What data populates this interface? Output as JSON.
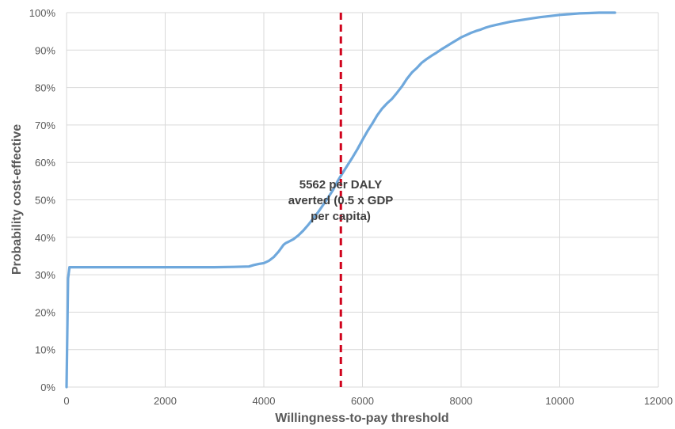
{
  "chart_data": {
    "type": "line",
    "title": "",
    "xlabel": "Willingness-to-pay threshold",
    "ylabel": "Probability cost-effective",
    "xlim": [
      0,
      12000
    ],
    "ylim": [
      0,
      1
    ],
    "x_ticks": [
      0,
      2000,
      4000,
      6000,
      8000,
      10000,
      12000
    ],
    "x_tick_labels": [
      "0",
      "2000",
      "4000",
      "6000",
      "8000",
      "10000",
      "12000"
    ],
    "y_ticks": [
      0,
      0.1,
      0.2,
      0.3,
      0.4,
      0.5,
      0.6,
      0.7,
      0.8,
      0.9,
      1.0
    ],
    "y_tick_labels": [
      "0%",
      "10%",
      "20%",
      "30%",
      "40%",
      "50%",
      "60%",
      "70%",
      "80%",
      "90%",
      "100%"
    ],
    "grid": true,
    "legend": "none",
    "colors": {
      "series": "#6fa8dc",
      "threshold": "#d0021b",
      "grid": "#d9d9d9",
      "text": "#595959"
    },
    "series": [
      {
        "x": [
          0,
          30,
          60,
          100,
          500,
          1000,
          2000,
          3000,
          3400,
          3700,
          3800,
          3900,
          4000,
          4100,
          4200,
          4300,
          4400,
          4450,
          4500,
          4600,
          4700,
          4800,
          4900,
          5000,
          5100,
          5200,
          5300,
          5400,
          5500,
          5600,
          5700,
          5800,
          5900,
          6000,
          6100,
          6200,
          6300,
          6400,
          6500,
          6600,
          6700,
          6800,
          6900,
          7000,
          7100,
          7200,
          7300,
          7400,
          7500,
          7600,
          7700,
          7800,
          7900,
          8000,
          8100,
          8200,
          8300,
          8400,
          8500,
          8600,
          8700,
          8800,
          8900,
          9000,
          9200,
          9400,
          9600,
          9800,
          10000,
          10200,
          10400,
          10600,
          10800,
          11000,
          11120
        ],
        "y": [
          0.0,
          0.29,
          0.32,
          0.32,
          0.32,
          0.32,
          0.32,
          0.32,
          0.321,
          0.322,
          0.326,
          0.329,
          0.331,
          0.337,
          0.347,
          0.362,
          0.38,
          0.385,
          0.388,
          0.395,
          0.405,
          0.418,
          0.433,
          0.45,
          0.467,
          0.486,
          0.505,
          0.526,
          0.551,
          0.572,
          0.593,
          0.614,
          0.636,
          0.66,
          0.683,
          0.704,
          0.726,
          0.744,
          0.758,
          0.77,
          0.786,
          0.803,
          0.823,
          0.84,
          0.852,
          0.866,
          0.876,
          0.885,
          0.893,
          0.902,
          0.91,
          0.918,
          0.926,
          0.934,
          0.94,
          0.946,
          0.951,
          0.955,
          0.96,
          0.964,
          0.967,
          0.97,
          0.973,
          0.976,
          0.98,
          0.984,
          0.988,
          0.991,
          0.994,
          0.996,
          0.998,
          0.999,
          1.0,
          1.0,
          1.0
        ]
      }
    ],
    "threshold": {
      "x": 5562
    },
    "annotation": [
      "5562 per DALY",
      "averted (0.5 x GDP",
      "per capita)"
    ]
  }
}
